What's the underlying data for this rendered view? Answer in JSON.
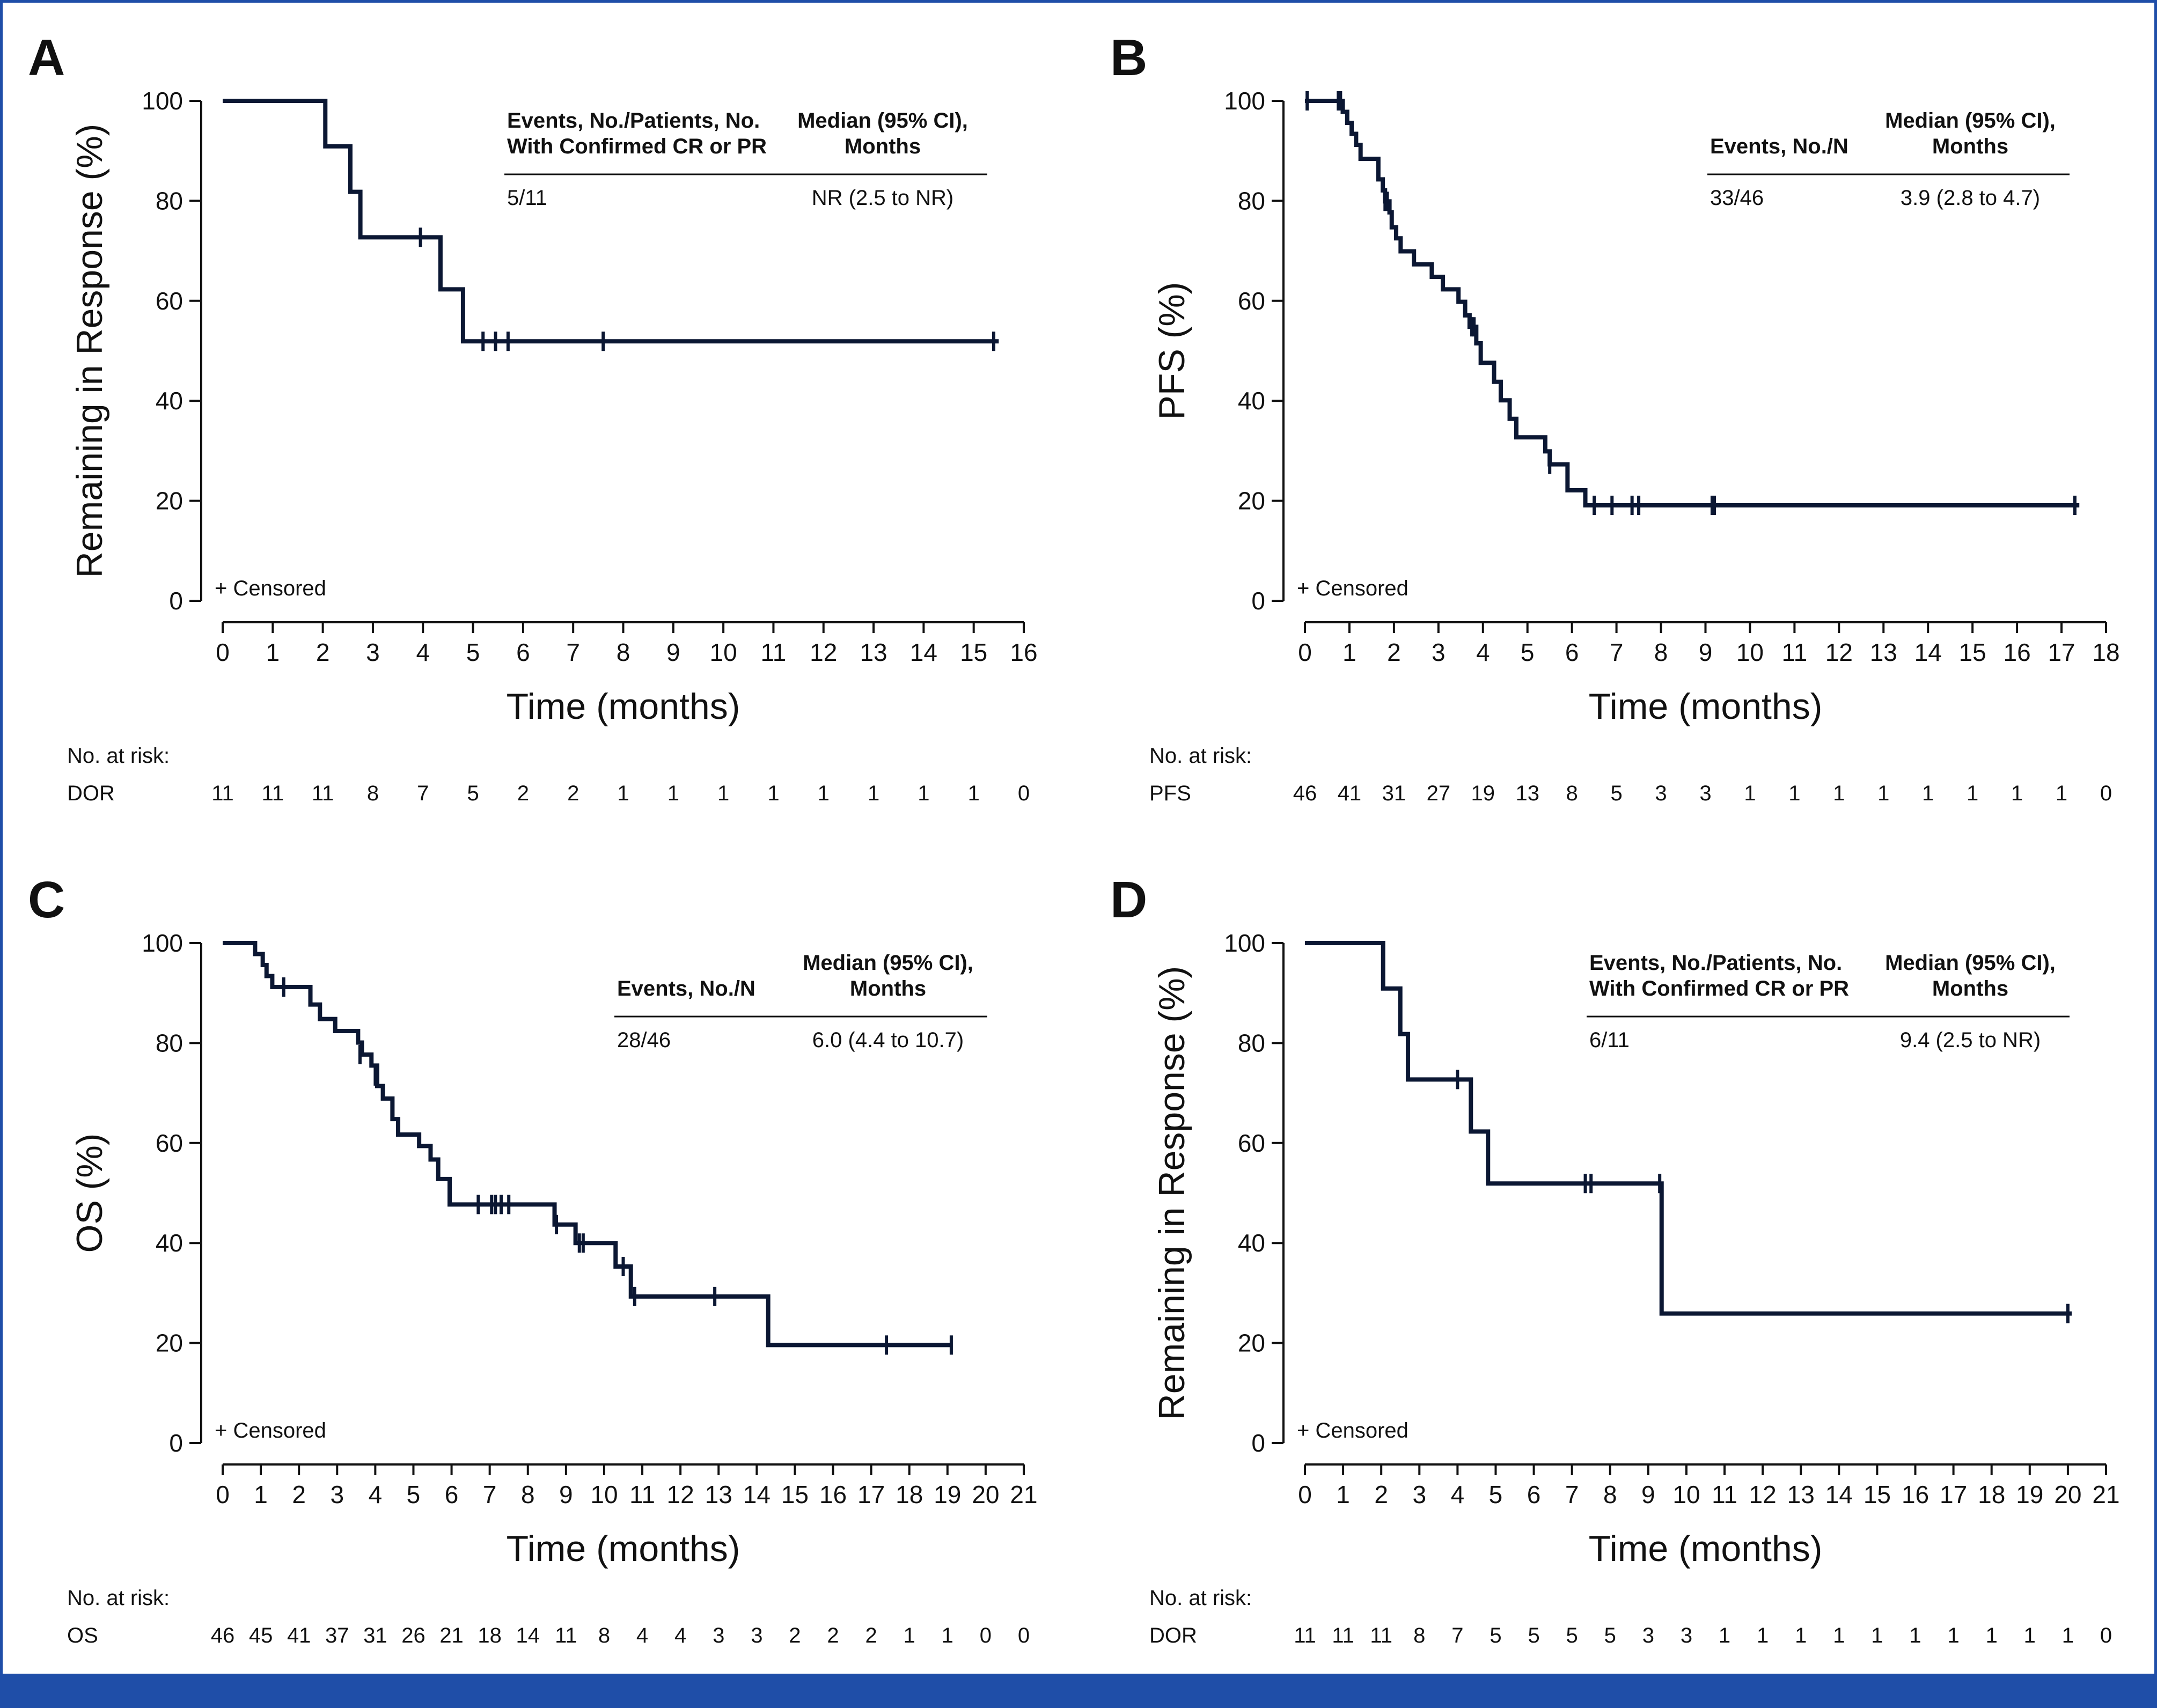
{
  "chart_data": [
    {
      "type": "line",
      "panel_letter": "A",
      "ylabel": "Remaining in Response (%)",
      "xlabel": "Time (months)",
      "xlim": [
        0,
        16
      ],
      "ylim": [
        0,
        100
      ],
      "x_ticks": [
        "0",
        "1",
        "2",
        "3",
        "4",
        "5",
        "6",
        "7",
        "8",
        "9",
        "10",
        "11",
        "12",
        "13",
        "14",
        "15",
        "16"
      ],
      "y_ticks": [
        "0",
        "20",
        "40",
        "60",
        "80",
        "100"
      ],
      "series": [
        {
          "name": "DOR",
          "steps": [
            [
              0,
              100
            ],
            [
              2.05,
              90.9
            ],
            [
              2.55,
              81.8
            ],
            [
              2.75,
              72.7
            ],
            [
              4.35,
              62.3
            ],
            [
              4.8,
              51.9
            ],
            [
              15.5,
              51.9
            ]
          ],
          "censored": [
            [
              3.95,
              72.7
            ],
            [
              5.2,
              51.9
            ],
            [
              5.45,
              51.9
            ],
            [
              5.7,
              51.9
            ],
            [
              7.6,
              51.9
            ],
            [
              15.4,
              51.9
            ]
          ]
        }
      ],
      "censored_legend": "+ Censored",
      "inset": {
        "col1_header": [
          "Events, No./Patients, No.",
          "With Confirmed CR or PR"
        ],
        "col2_header": [
          "Median (95% CI),",
          "Months"
        ],
        "col1_value": "5/11",
        "col2_value": "NR (2.5 to NR)"
      },
      "risk": {
        "label": "No. at risk:",
        "row_name": "DOR",
        "x": [
          0,
          1,
          2,
          3,
          4,
          5,
          6,
          7,
          8,
          9,
          10,
          11,
          12,
          13,
          14,
          15,
          16
        ],
        "values": [
          "11",
          "11",
          "11",
          "8",
          "7",
          "5",
          "2",
          "2",
          "1",
          "1",
          "1",
          "1",
          "1",
          "1",
          "1",
          "1",
          "0"
        ]
      }
    },
    {
      "type": "line",
      "panel_letter": "B",
      "ylabel": "PFS (%)",
      "xlabel": "Time (months)",
      "xlim": [
        0,
        18
      ],
      "ylim": [
        0,
        100
      ],
      "x_ticks": [
        "0",
        "1",
        "2",
        "3",
        "4",
        "5",
        "6",
        "7",
        "8",
        "9",
        "10",
        "11",
        "12",
        "13",
        "14",
        "15",
        "16",
        "17",
        "18"
      ],
      "y_ticks": [
        "0",
        "20",
        "40",
        "60",
        "80",
        "100"
      ],
      "series": [
        {
          "name": "PFS",
          "steps": [
            [
              0,
              100
            ],
            [
              0.85,
              97.8
            ],
            [
              0.95,
              95.6
            ],
            [
              1.05,
              93.4
            ],
            [
              1.15,
              91.2
            ],
            [
              1.25,
              88.4
            ],
            [
              1.65,
              84.3
            ],
            [
              1.75,
              82.1
            ],
            [
              1.8,
              79.9
            ],
            [
              1.9,
              77.7
            ],
            [
              1.95,
              74.7
            ],
            [
              2.05,
              72.5
            ],
            [
              2.15,
              69.9
            ],
            [
              2.45,
              67.3
            ],
            [
              2.85,
              64.8
            ],
            [
              3.1,
              62.3
            ],
            [
              3.45,
              59.8
            ],
            [
              3.6,
              57.1
            ],
            [
              3.7,
              54.8
            ],
            [
              3.85,
              51.5
            ],
            [
              3.95,
              47.6
            ],
            [
              4.25,
              43.8
            ],
            [
              4.4,
              40.1
            ],
            [
              4.6,
              36.4
            ],
            [
              4.75,
              32.7
            ],
            [
              5.4,
              29.9
            ],
            [
              5.5,
              27.3
            ],
            [
              5.9,
              22.1
            ],
            [
              6.3,
              19.1
            ],
            [
              17.4,
              19.1
            ]
          ],
          "censored": [
            [
              0.05,
              100
            ],
            [
              0.75,
              100
            ],
            [
              0.8,
              100
            ],
            [
              1.8,
              79.9
            ],
            [
              1.85,
              79.9
            ],
            [
              3.75,
              54.8
            ],
            [
              3.8,
              54.8
            ],
            [
              5.5,
              27.3
            ],
            [
              6.5,
              19.1
            ],
            [
              6.9,
              19.1
            ],
            [
              7.35,
              19.1
            ],
            [
              7.5,
              19.1
            ],
            [
              9.15,
              19.1
            ],
            [
              9.2,
              19.1
            ],
            [
              17.3,
              19.1
            ]
          ]
        }
      ],
      "censored_legend": "+ Censored",
      "inset": {
        "col1_header": [
          "",
          "Events, No./N"
        ],
        "col2_header": [
          "Median (95% CI),",
          "Months"
        ],
        "col1_value": "33/46",
        "col2_value": "3.9 (2.8 to 4.7)"
      },
      "risk": {
        "label": "No. at risk:",
        "row_name": "PFS",
        "x": [
          0,
          1,
          2,
          3,
          4,
          5,
          6,
          7,
          8,
          9,
          10,
          11,
          12,
          13,
          14,
          15,
          16,
          17,
          18
        ],
        "values": [
          "46",
          "41",
          "31",
          "27",
          "19",
          "13",
          "8",
          "5",
          "3",
          "3",
          "1",
          "1",
          "1",
          "1",
          "1",
          "1",
          "1",
          "1",
          "0"
        ]
      }
    },
    {
      "type": "line",
      "panel_letter": "C",
      "ylabel": "OS (%)",
      "xlabel": "Time (months)",
      "xlim": [
        0,
        21
      ],
      "ylim": [
        0,
        100
      ],
      "x_ticks": [
        "0",
        "1",
        "2",
        "3",
        "4",
        "5",
        "6",
        "7",
        "8",
        "9",
        "10",
        "11",
        "12",
        "13",
        "14",
        "15",
        "16",
        "17",
        "18",
        "19",
        "20",
        "21"
      ],
      "y_ticks": [
        "0",
        "20",
        "40",
        "60",
        "80",
        "100"
      ],
      "series": [
        {
          "name": "OS",
          "steps": [
            [
              0,
              100
            ],
            [
              0.85,
              97.8
            ],
            [
              1.05,
              95.6
            ],
            [
              1.15,
              93.4
            ],
            [
              1.3,
              91.2
            ],
            [
              2.3,
              87.7
            ],
            [
              2.55,
              84.8
            ],
            [
              2.95,
              82.4
            ],
            [
              3.55,
              80.1
            ],
            [
              3.65,
              77.7
            ],
            [
              3.9,
              75.5
            ],
            [
              4.05,
              71.4
            ],
            [
              4.2,
              68.9
            ],
            [
              4.45,
              64.8
            ],
            [
              4.6,
              61.7
            ],
            [
              5.15,
              59.4
            ],
            [
              5.45,
              56.7
            ],
            [
              5.65,
              52.8
            ],
            [
              5.95,
              47.7
            ],
            [
              8.7,
              43.7
            ],
            [
              9.25,
              40.0
            ],
            [
              10.3,
              35.3
            ],
            [
              10.7,
              29.3
            ],
            [
              14.3,
              19.6
            ],
            [
              19.1,
              19.6
            ]
          ],
          "censored": [
            [
              1.6,
              91.2
            ],
            [
              3.6,
              77.7
            ],
            [
              4.0,
              73.4
            ],
            [
              6.7,
              47.7
            ],
            [
              7.05,
              47.7
            ],
            [
              7.15,
              47.7
            ],
            [
              7.3,
              47.7
            ],
            [
              7.5,
              47.7
            ],
            [
              8.75,
              43.7
            ],
            [
              9.35,
              40.0
            ],
            [
              9.45,
              40.0
            ],
            [
              10.5,
              35.3
            ],
            [
              10.8,
              29.3
            ],
            [
              12.9,
              29.3
            ],
            [
              17.4,
              19.6
            ],
            [
              19.1,
              19.6
            ]
          ]
        }
      ],
      "censored_legend": "+ Censored",
      "inset": {
        "col1_header": [
          "",
          "Events, No./N"
        ],
        "col2_header": [
          "Median (95% CI),",
          "Months"
        ],
        "col1_value": "28/46",
        "col2_value": "6.0 (4.4 to 10.7)"
      },
      "risk": {
        "label": "No. at risk:",
        "row_name": "OS",
        "x": [
          0,
          1,
          2,
          3,
          4,
          5,
          6,
          7,
          8,
          9,
          10,
          11,
          12,
          13,
          14,
          15,
          16,
          17,
          18,
          19,
          20,
          21
        ],
        "values": [
          "46",
          "45",
          "41",
          "37",
          "31",
          "26",
          "21",
          "18",
          "14",
          "11",
          "8",
          "4",
          "4",
          "3",
          "3",
          "2",
          "2",
          "2",
          "1",
          "1",
          "0",
          "0"
        ]
      }
    },
    {
      "type": "line",
      "panel_letter": "D",
      "ylabel": "Remaining in Response (%)",
      "xlabel": "Time (months)",
      "xlim": [
        0,
        21
      ],
      "ylim": [
        0,
        100
      ],
      "x_ticks": [
        "0",
        "1",
        "2",
        "3",
        "4",
        "5",
        "6",
        "7",
        "8",
        "9",
        "10",
        "11",
        "12",
        "13",
        "14",
        "15",
        "16",
        "17",
        "18",
        "19",
        "20",
        "21"
      ],
      "y_ticks": [
        "0",
        "20",
        "40",
        "60",
        "80",
        "100"
      ],
      "series": [
        {
          "name": "DOR",
          "steps": [
            [
              0,
              100
            ],
            [
              2.05,
              90.9
            ],
            [
              2.5,
              81.8
            ],
            [
              2.7,
              72.7
            ],
            [
              4.35,
              62.3
            ],
            [
              4.8,
              51.9
            ],
            [
              9.35,
              25.9
            ],
            [
              20.1,
              25.9
            ]
          ],
          "censored": [
            [
              4.0,
              72.7
            ],
            [
              7.35,
              51.9
            ],
            [
              7.5,
              51.9
            ],
            [
              9.3,
              51.9
            ],
            [
              20.0,
              25.9
            ]
          ]
        }
      ],
      "censored_legend": "+ Censored",
      "inset": {
        "col1_header": [
          "Events, No./Patients, No.",
          "With Confirmed CR or PR"
        ],
        "col2_header": [
          "Median (95% CI),",
          "Months"
        ],
        "col1_value": "6/11",
        "col2_value": "9.4 (2.5 to NR)"
      },
      "risk": {
        "label": "No. at risk:",
        "row_name": "DOR",
        "x": [
          0,
          1,
          2,
          3,
          4,
          5,
          6,
          7,
          8,
          9,
          10,
          11,
          12,
          13,
          14,
          15,
          16,
          17,
          18,
          19,
          20,
          21
        ],
        "values": [
          "11",
          "11",
          "11",
          "8",
          "7",
          "5",
          "5",
          "5",
          "5",
          "3",
          "3",
          "1",
          "1",
          "1",
          "1",
          "1",
          "1",
          "1",
          "1",
          "1",
          "1",
          "0"
        ]
      }
    }
  ],
  "colors": {
    "curve": "#0b1733",
    "frame": "#1f4ea8",
    "text": "#111111"
  }
}
